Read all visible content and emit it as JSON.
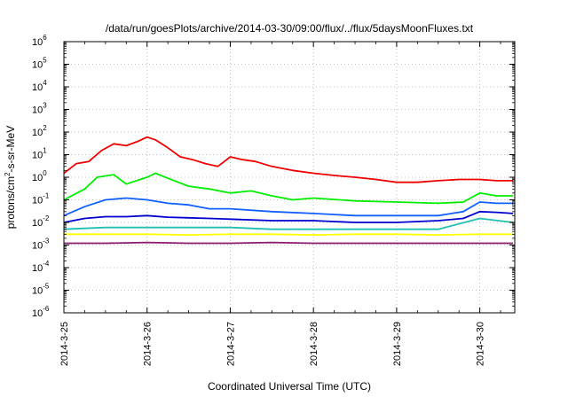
{
  "chart_data": {
    "type": "line",
    "title": "/data/run/goesPlots/archive/2014-03-30/09:00/flux/../flux/5daysMoonFluxes.txt",
    "xlabel": "Coordinated Universal Time (UTC)",
    "ylabel": "protons/cm²-s-sr-MeV",
    "ylabel_parts": {
      "base": "protons/cm",
      "sup": "2",
      "rest": "-s-sr-MeV"
    },
    "y_scale": "log",
    "ylim_exp": [
      -6,
      6
    ],
    "y_ticks": [
      {
        "base": "10",
        "exp": "-6"
      },
      {
        "base": "10",
        "exp": "-5"
      },
      {
        "base": "10",
        "exp": "-4"
      },
      {
        "base": "10",
        "exp": "-3"
      },
      {
        "base": "10",
        "exp": "-2"
      },
      {
        "base": "10",
        "exp": "-1"
      },
      {
        "base": "10",
        "exp": "0"
      },
      {
        "base": "10",
        "exp": "1"
      },
      {
        "base": "10",
        "exp": "2"
      },
      {
        "base": "10",
        "exp": "3"
      },
      {
        "base": "10",
        "exp": "4"
      },
      {
        "base": "10",
        "exp": "5"
      },
      {
        "base": "10",
        "exp": "6"
      }
    ],
    "x_ticks": [
      "2014-3-25",
      "2014-3-26",
      "2014-3-27",
      "2014-3-28",
      "2014-3-29",
      "2014-3-30"
    ],
    "x_days": [
      0,
      1,
      2,
      3,
      4,
      5
    ],
    "xlim_days": [
      0,
      5.42
    ],
    "grid": true,
    "legend": "none",
    "series": [
      {
        "color": "#8b1a6b",
        "x": [
          0,
          0.5,
          1,
          1.5,
          2,
          2.5,
          3,
          3.5,
          4,
          4.5,
          5,
          5.4
        ],
        "y": [
          0.0012,
          0.0012,
          0.0013,
          0.0012,
          0.0012,
          0.0013,
          0.0012,
          0.0012,
          0.0012,
          0.0012,
          0.0012,
          0.0012
        ]
      },
      {
        "color": "#ffff00",
        "x": [
          0,
          0.5,
          1,
          1.5,
          2,
          2.5,
          3,
          3.5,
          4,
          4.5,
          5,
          5.4
        ],
        "y": [
          0.003,
          0.003,
          0.003,
          0.0028,
          0.003,
          0.003,
          0.0028,
          0.003,
          0.003,
          0.0028,
          0.003,
          0.003
        ]
      },
      {
        "color": "#20c0b0",
        "x": [
          0,
          0.5,
          1,
          1.5,
          2,
          2.5,
          3,
          3.5,
          4,
          4.5,
          5,
          5.4
        ],
        "y": [
          0.005,
          0.006,
          0.006,
          0.006,
          0.006,
          0.005,
          0.005,
          0.005,
          0.005,
          0.005,
          0.015,
          0.01
        ]
      },
      {
        "color": "#0000d0",
        "x": [
          0,
          0.25,
          0.5,
          0.75,
          1,
          1.25,
          1.5,
          1.75,
          2,
          2.5,
          3,
          3.5,
          4,
          4.5,
          4.8,
          5,
          5.2,
          5.4
        ],
        "y": [
          0.01,
          0.015,
          0.018,
          0.018,
          0.02,
          0.017,
          0.016,
          0.015,
          0.014,
          0.012,
          0.012,
          0.01,
          0.01,
          0.012,
          0.015,
          0.03,
          0.028,
          0.025
        ]
      },
      {
        "color": "#1060ff",
        "x": [
          0,
          0.25,
          0.5,
          0.75,
          1,
          1.25,
          1.5,
          1.75,
          2,
          2.5,
          3,
          3.5,
          4,
          4.5,
          4.8,
          5,
          5.2,
          5.4
        ],
        "y": [
          0.02,
          0.05,
          0.1,
          0.12,
          0.1,
          0.07,
          0.06,
          0.04,
          0.04,
          0.03,
          0.025,
          0.02,
          0.02,
          0.02,
          0.03,
          0.08,
          0.07,
          0.07
        ]
      },
      {
        "color": "#00ee00",
        "x": [
          0,
          0.25,
          0.4,
          0.6,
          0.75,
          1,
          1.1,
          1.25,
          1.5,
          1.75,
          2,
          2.25,
          2.5,
          2.75,
          3,
          3.5,
          4,
          4.5,
          4.8,
          5,
          5.2,
          5.4
        ],
        "y": [
          0.1,
          0.3,
          1.0,
          1.3,
          0.5,
          1.0,
          1.5,
          0.9,
          0.4,
          0.3,
          0.2,
          0.25,
          0.15,
          0.1,
          0.12,
          0.09,
          0.08,
          0.07,
          0.08,
          0.2,
          0.15,
          0.15
        ]
      },
      {
        "color": "#ee0000",
        "x": [
          0,
          0.15,
          0.3,
          0.45,
          0.6,
          0.75,
          0.9,
          1.0,
          1.1,
          1.25,
          1.4,
          1.55,
          1.7,
          1.85,
          2.0,
          2.15,
          2.3,
          2.5,
          2.75,
          3.0,
          3.25,
          3.5,
          3.75,
          4.0,
          4.25,
          4.5,
          4.75,
          5.0,
          5.2,
          5.4
        ],
        "y": [
          1.5,
          4,
          5,
          15,
          30,
          25,
          40,
          60,
          45,
          20,
          8,
          6,
          4,
          3,
          8,
          6,
          5,
          3,
          2,
          1.5,
          1.2,
          1.0,
          0.8,
          0.6,
          0.6,
          0.7,
          0.8,
          0.8,
          0.7,
          0.7
        ]
      }
    ]
  }
}
